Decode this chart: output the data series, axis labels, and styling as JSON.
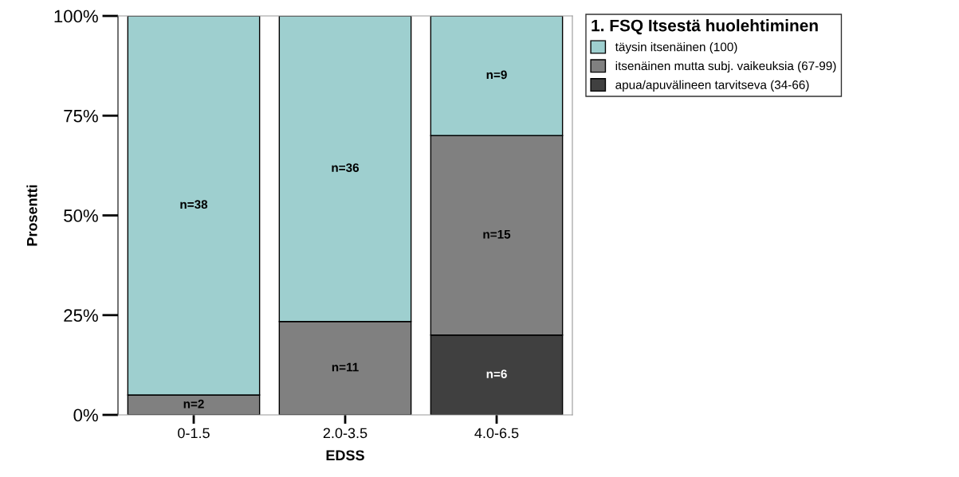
{
  "chart_data": {
    "type": "bar",
    "stacked": true,
    "xlabel": "EDSS",
    "ylabel": "Prosentti",
    "categories": [
      "0-1.5",
      "2.0-3.5",
      "4.0-6.5"
    ],
    "series": [
      {
        "name": "apua/apuvälineen tarvitseva (34-66)",
        "color": "#404040",
        "values": [
          0,
          0,
          20.0
        ]
      },
      {
        "name": "itsenäinen mutta subj. vaikeuksia (67-99)",
        "color": "#808080",
        "values": [
          5.0,
          23.4,
          50.0
        ]
      },
      {
        "name": "täysin itsenäinen (100)",
        "color": "#9ecfcf",
        "values": [
          95.0,
          76.6,
          30.0
        ]
      }
    ],
    "annotations": [
      "n=2",
      "n=38",
      "n=11",
      "n=36",
      "n=6",
      "n=15",
      "n=9"
    ],
    "ylim": [
      0,
      100
    ],
    "yticks": [
      {
        "value": 0,
        "label": "0%"
      },
      {
        "value": 25,
        "label": "25%"
      },
      {
        "value": 50,
        "label": "50%"
      },
      {
        "value": 75,
        "label": "75%"
      },
      {
        "value": 100,
        "label": "100%"
      }
    ],
    "legend_title": "1. FSQ Itsestä huolehtiminen",
    "legend": "top right",
    "grid": false
  }
}
